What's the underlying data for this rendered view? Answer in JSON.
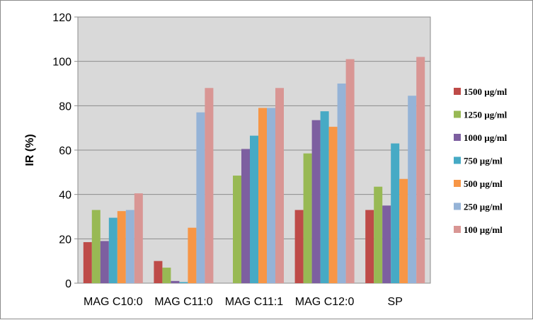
{
  "chart_data": {
    "type": "bar",
    "title": "",
    "xlabel": "",
    "ylabel": "IR (%)",
    "ylim": [
      0,
      120
    ],
    "yticks": [
      0,
      20,
      40,
      60,
      80,
      100,
      120
    ],
    "grid": true,
    "legend_position": "right",
    "categories": [
      "MAG C10:0",
      "MAG C11:0",
      "MAG C11:1",
      "MAG C12:0",
      "SP"
    ],
    "series": [
      {
        "name": "1500 µg/ml",
        "color": "#be4b48",
        "values": [
          18.5,
          10,
          0,
          33,
          33
        ]
      },
      {
        "name": "1250 µg/ml",
        "color": "#98b954",
        "values": [
          33,
          7,
          48.5,
          58.5,
          43.5
        ]
      },
      {
        "name": "1000 µg/ml",
        "color": "#7d5fa0",
        "values": [
          19,
          1,
          60.5,
          73.5,
          35
        ]
      },
      {
        "name": "750 µg/ml",
        "color": "#46aac5",
        "values": [
          29.5,
          0.5,
          66.5,
          77.5,
          63
        ]
      },
      {
        "name": "500 µg/ml",
        "color": "#f79646",
        "values": [
          32.5,
          25,
          79,
          70.5,
          47
        ]
      },
      {
        "name": "250 µg/ml",
        "color": "#95b3d7",
        "values": [
          33,
          77,
          79,
          90,
          84.5
        ]
      },
      {
        "name": "100 µg/ml",
        "color": "#d99694",
        "values": [
          40.5,
          88,
          88,
          101,
          102
        ]
      }
    ]
  }
}
